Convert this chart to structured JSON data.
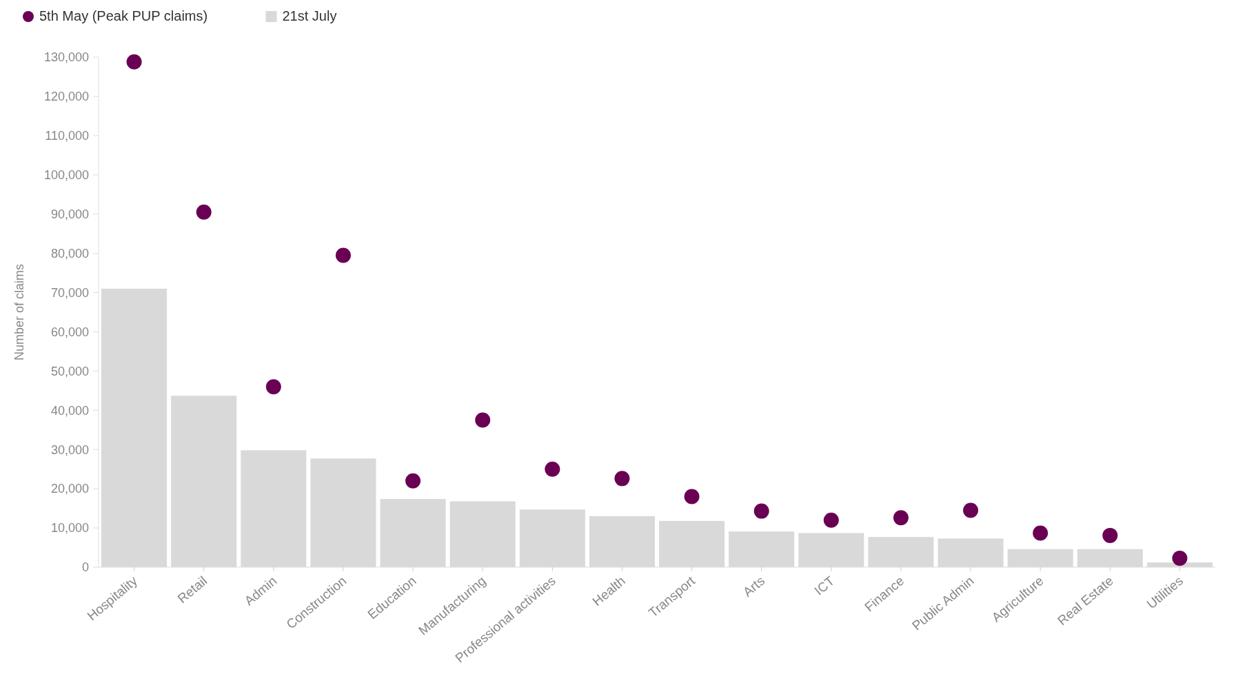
{
  "chart_data": {
    "type": "bar",
    "ylabel": "Number of claims",
    "categories": [
      "Hospitality",
      "Retail",
      "Admin",
      "Construction",
      "Education",
      "Manufacturing",
      "Professional activities",
      "Health",
      "Transport",
      "Arts",
      "ICT",
      "Finance",
      "Public Admin",
      "Agriculture",
      "Real Estate",
      "Utilities"
    ],
    "series": [
      {
        "name": "5th May (Peak PUP claims)",
        "type": "scatter",
        "color": "#6a0054",
        "values": [
          128800,
          90500,
          46000,
          79500,
          22000,
          37500,
          25000,
          22600,
          18000,
          14300,
          12000,
          12600,
          14500,
          8700,
          8100,
          2300
        ]
      },
      {
        "name": "21st July",
        "color": "#d9d9d9",
        "values": [
          71000,
          43700,
          29800,
          27700,
          17400,
          16800,
          14700,
          13000,
          11800,
          9100,
          8700,
          7700,
          7300,
          4600,
          4600,
          1200
        ]
      }
    ],
    "ylim": [
      0,
      130000
    ],
    "yticks": [
      {
        "value": 0,
        "label": "0"
      },
      {
        "value": 10000,
        "label": "10,000"
      },
      {
        "value": 20000,
        "label": "20,000"
      },
      {
        "value": 30000,
        "label": "30,000"
      },
      {
        "value": 40000,
        "label": "40,000"
      },
      {
        "value": 50000,
        "label": "50,000"
      },
      {
        "value": 60000,
        "label": "60,000"
      },
      {
        "value": 70000,
        "label": "70,000"
      },
      {
        "value": 80000,
        "label": "80,000"
      },
      {
        "value": 90000,
        "label": "90,000"
      },
      {
        "value": 100000,
        "label": "100,000"
      },
      {
        "value": 110000,
        "label": "110,000"
      },
      {
        "value": 120000,
        "label": "120,000"
      },
      {
        "value": 130000,
        "label": "130,000"
      }
    ],
    "grid": false,
    "legend": "top left",
    "marker": "circle"
  }
}
